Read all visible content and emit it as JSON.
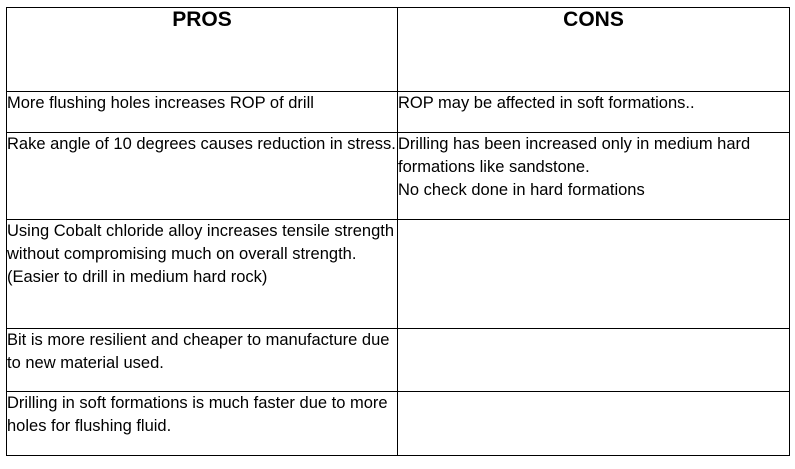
{
  "table": {
    "headers": [
      "PROS",
      "CONS"
    ],
    "rows": [
      {
        "pro": "More flushing holes increases ROP of drill",
        "con": "ROP may be affected in soft formations.."
      },
      {
        "pro": "Rake angle of 10 degrees causes reduction in stress.",
        "con": "Drilling has been increased only in medium hard formations like sandstone.\nNo check done in hard formations"
      },
      {
        "pro": "Using Cobalt chloride alloy increases tensile strength without compromising much on overall strength. (Easier to drill in medium hard rock)",
        "con": ""
      },
      {
        "pro": "Bit is more resilient and cheaper to manufacture due to new material used.",
        "con": ""
      },
      {
        "pro": "Drilling in soft formations is much faster due to more holes for flushing fluid.",
        "con": ""
      }
    ]
  }
}
